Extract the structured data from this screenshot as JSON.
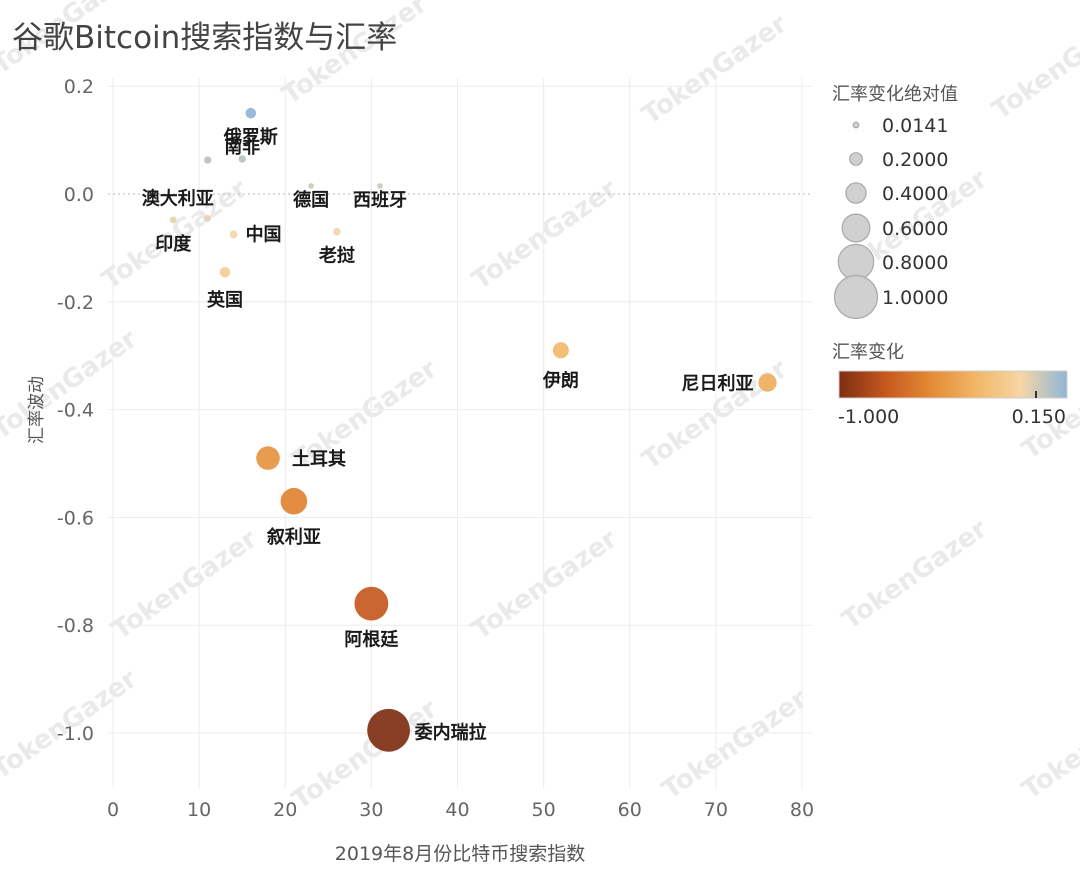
{
  "chart_data": {
    "type": "scatter",
    "title": "谷歌Bitcoin搜索指数与汇率",
    "xlabel": "2019年8月份比特币搜索指数",
    "ylabel": "汇率波动",
    "xlim": [
      -1,
      82
    ],
    "ylim": [
      -1.1,
      0.22
    ],
    "xticks": [
      "0",
      "10",
      "20",
      "30",
      "40",
      "50",
      "60",
      "70",
      "80"
    ],
    "yticks": [
      "0.2",
      "0.0",
      "-0.2",
      "-0.4",
      "-0.6",
      "-0.8",
      "-1.0"
    ],
    "grid": true,
    "points": [
      {
        "label": "俄罗斯",
        "x": 16,
        "y": 0.15,
        "change": 0.15
      },
      {
        "label": "南非",
        "x": 15,
        "y": 0.065,
        "change": 0.065
      },
      {
        "label": "",
        "x": 11,
        "y": 0.063,
        "change": 0.063
      },
      {
        "label": "德国",
        "x": 23,
        "y": 0.015,
        "change": 0.015
      },
      {
        "label": "西班牙",
        "x": 31,
        "y": 0.015,
        "change": 0.015
      },
      {
        "label": "澳大利亚",
        "x": 11,
        "y": -0.045,
        "change": -0.045
      },
      {
        "label": "印度",
        "x": 7,
        "y": -0.048,
        "change": -0.048
      },
      {
        "label": "中国",
        "x": 14,
        "y": -0.075,
        "change": -0.075
      },
      {
        "label": "老挝",
        "x": 26,
        "y": -0.07,
        "change": -0.07
      },
      {
        "label": "英国",
        "x": 13,
        "y": -0.145,
        "change": -0.145
      },
      {
        "label": "伊朗",
        "x": 52,
        "y": -0.29,
        "change": -0.29
      },
      {
        "label": "尼日利亚",
        "x": 76,
        "y": -0.35,
        "change": -0.35
      },
      {
        "label": "土耳其",
        "x": 18,
        "y": -0.49,
        "change": -0.49
      },
      {
        "label": "叙利亚",
        "x": 21,
        "y": -0.57,
        "change": -0.57
      },
      {
        "label": "阿根廷",
        "x": 30,
        "y": -0.76,
        "change": -0.76
      },
      {
        "label": "委内瑞拉",
        "x": 32,
        "y": -0.995,
        "change": -0.995
      }
    ],
    "size_legend": {
      "title": "汇率变化绝对值",
      "entries": [
        {
          "label": "0.0141",
          "value": 0.0141
        },
        {
          "label": "0.2000",
          "value": 0.2
        },
        {
          "label": "0.4000",
          "value": 0.4
        },
        {
          "label": "0.6000",
          "value": 0.6
        },
        {
          "label": "0.8000",
          "value": 0.8
        },
        {
          "label": "1.0000",
          "value": 1.0
        }
      ]
    },
    "color_legend": {
      "title": "汇率变化",
      "min_label": "-1.000",
      "max_label": "0.150",
      "min": -1.0,
      "max": 0.15,
      "stops": [
        "#7d2e12",
        "#c4571f",
        "#e38a35",
        "#f2b667",
        "#f6d6a6",
        "#8fb6d6"
      ]
    },
    "watermark": "TokenGazer"
  }
}
